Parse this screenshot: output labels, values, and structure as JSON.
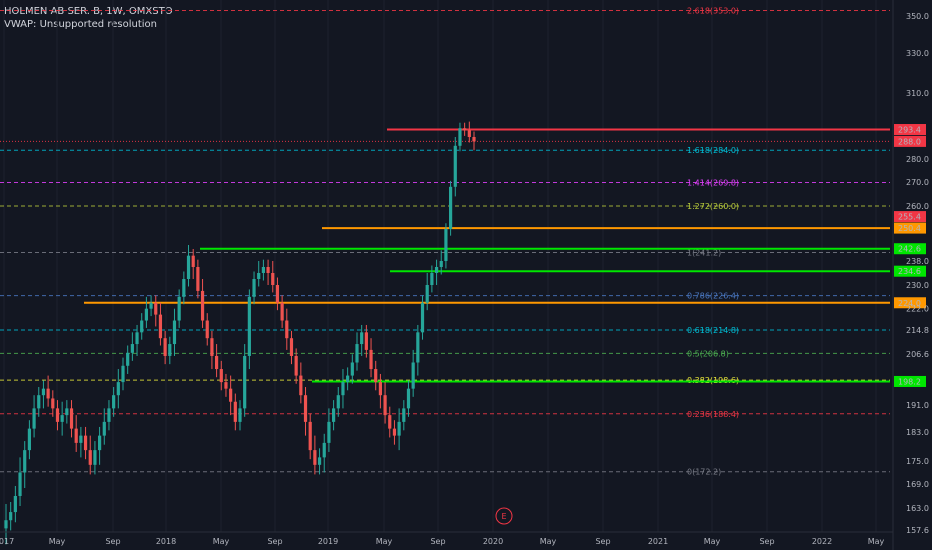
{
  "header": {
    "symbol_line": "HOLMEN AB SER. B, 1W, OMXSTO",
    "indicator_line": "VWAP: Unsupported resolution"
  },
  "colors": {
    "background": "#131722",
    "up": "#26a69a",
    "down": "#ef5350",
    "red": "#f23645",
    "orange": "#ff9800",
    "green": "#00e600",
    "cyan": "#00bcd4",
    "magenta": "#e040fb",
    "olive": "#b7c93a",
    "blue": "#4a78c2",
    "yellow": "#e4e43a",
    "gray": "#787b86"
  },
  "chart_data": {
    "type": "candlestick",
    "title": "HOLMEN AB SER. B, 1W, OMXSTO",
    "price_axis_labels": [
      "350.0",
      "330.0",
      "310.0",
      "293.4",
      "288.0",
      "280.0",
      "270.0",
      "260.0",
      "255.4",
      "250.4",
      "242.6",
      "238.0",
      "234.6",
      "230.0",
      "224.0",
      "222.0",
      "214.8",
      "206.6",
      "198.2",
      "191.0",
      "183.0",
      "175.0",
      "169.0",
      "163.0",
      "157.6"
    ],
    "time_axis_labels": [
      "2017",
      "May",
      "Sep",
      "2018",
      "May",
      "Sep",
      "2019",
      "May",
      "Sep",
      "2020",
      "May",
      "Sep",
      "2021",
      "May",
      "Sep",
      "2022",
      "May"
    ],
    "fib_levels": [
      {
        "label": "2.618(353.0)",
        "price": 353.0,
        "color": "#f23645"
      },
      {
        "label": "1.618(284.0)",
        "price": 284.0,
        "color": "#00bcd4"
      },
      {
        "label": "1.414(269.8)",
        "price": 269.8,
        "color": "#e040fb"
      },
      {
        "label": "1.272(260.0)",
        "price": 260.0,
        "color": "#b7c93a"
      },
      {
        "label": "1(241.2)",
        "price": 241.2,
        "color": "#787b86"
      },
      {
        "label": "0.786(226.4)",
        "price": 226.4,
        "color": "#4a78c2"
      },
      {
        "label": "0.618(214.8)",
        "price": 214.8,
        "color": "#00bcd4"
      },
      {
        "label": "0.5(206.8)",
        "price": 206.8,
        "color": "#4caf50"
      },
      {
        "label": "0.382(198.6)",
        "price": 198.6,
        "color": "#e4e43a"
      },
      {
        "label": "0.236(188.4)",
        "price": 188.4,
        "color": "#f23645"
      },
      {
        "label": "0(172.2)",
        "price": 172.2,
        "color": "#787b86"
      }
    ],
    "horizontal_lines": [
      {
        "price": 293.4,
        "color": "#f23645",
        "tag": "293.4"
      },
      {
        "price": 250.4,
        "color": "#ff9800",
        "tag": "250.4"
      },
      {
        "price": 242.6,
        "color": "#00e600",
        "tag": "242.6"
      },
      {
        "price": 234.6,
        "color": "#00e600",
        "tag": "234.6"
      },
      {
        "price": 224.0,
        "color": "#ff9800",
        "tag": "224.0"
      },
      {
        "price": 198.2,
        "color": "#00e600",
        "tag": "198.2"
      }
    ],
    "axis_tags": [
      {
        "price": 288.0,
        "color": "#f23645",
        "tag": "288.0"
      },
      {
        "price": 255.4,
        "color": "#f23645",
        "tag": "255.4"
      }
    ],
    "current_price": 288.0,
    "earnings_marker": "E",
    "series": [
      {
        "name": "HOLMEN AB SER. B",
        "close": [
          160,
          162,
          166,
          172,
          178,
          184,
          190,
          194,
          196,
          193,
          190,
          186,
          188,
          190,
          184,
          180,
          182,
          178,
          174,
          178,
          182,
          186,
          190,
          194,
          198,
          203,
          207,
          210,
          214,
          218,
          222,
          224,
          220,
          212,
          206,
          210,
          218,
          226,
          232,
          240,
          236,
          228,
          218,
          212,
          206,
          202,
          198,
          196,
          192,
          186,
          190,
          206,
          226,
          232,
          234,
          236,
          234,
          230,
          224,
          218,
          212,
          206,
          200,
          194,
          186,
          178,
          174,
          176,
          180,
          186,
          190,
          194,
          198,
          200,
          204,
          210,
          214,
          208,
          202,
          198,
          194,
          188,
          184,
          182,
          186,
          190,
          196,
          204,
          214,
          224,
          230,
          234,
          236,
          238,
          250,
          268,
          286,
          294,
          293,
          290,
          288
        ]
      }
    ],
    "ylim": [
      154,
      356
    ]
  }
}
